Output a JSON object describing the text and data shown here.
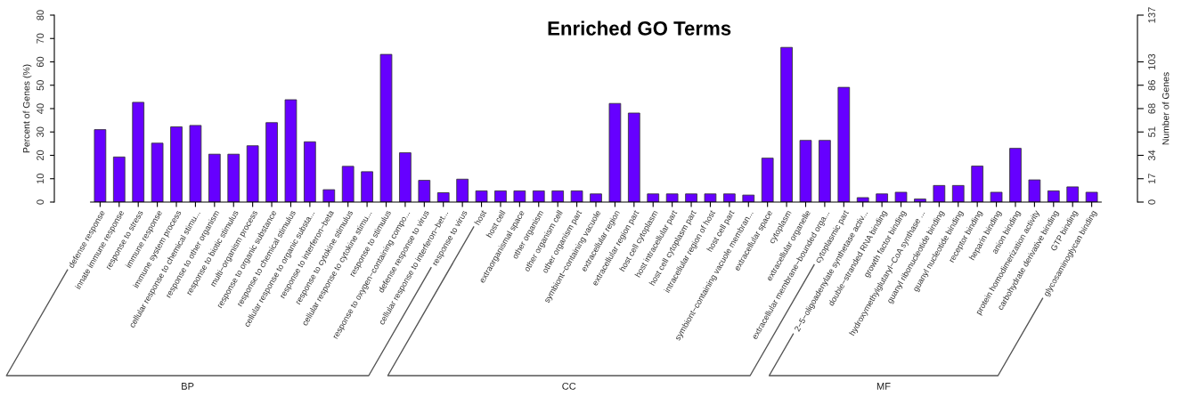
{
  "chart_data": {
    "type": "bar",
    "title": "Enriched GO Terms",
    "ylabel": "Percent of Genes (%)",
    "y2label": "Number of Genes",
    "categories": [
      "defense response",
      "innate immune response",
      "response to stress",
      "immune response",
      "immune system process",
      "cellular response to chemical stimu...",
      "response to other organism",
      "response to biotic stimulus",
      "multi−organism process",
      "response to organic substance",
      "response to chemical stimulus",
      "cellular response to organic substa...",
      "response to interferon−beta",
      "response to cytokine stimulus",
      "cellular response to cytokine stimu...",
      "response to stimulus",
      "response to oxygen−containing compo...",
      "defense response to virus",
      "cellular response to interferon−bet...",
      "response to virus",
      "host",
      "host cell",
      "extraorganismal space",
      "other organism",
      "other organism cell",
      "other organism part",
      "symbiont−containing vacuole",
      "extracellular region",
      "extracellular region part",
      "host cell cytoplasm",
      "host intracellular part",
      "host cell cytoplasm part",
      "intracellular region of host",
      "host cell part",
      "symbiont−containing vacuole membran...",
      "extracellular space",
      "cytoplasm",
      "extracellular organelle",
      "extracellular membrane−bounded orga...",
      "cytoplasmic part",
      "2−5−oligoadenylate synthetase activ...",
      "double−stranded RNA binding",
      "growth factor binding",
      "hydroxymethylglutaryl−CoA synthase ...",
      "guanyl ribonucleotide binding",
      "guanyl nucleotide binding",
      "receptor binding",
      "heparin binding",
      "anion binding",
      "protein homodimerization activity",
      "carbohydrate derivative binding",
      "GTP binding",
      "glycosaminoglycan binding"
    ],
    "series": [
      {
        "color": "#6600ff",
        "values": [
          31,
          19.3,
          42.7,
          25.2,
          32.2,
          32.8,
          20.5,
          20.5,
          24.1,
          34,
          43.8,
          25.8,
          5.3,
          15.3,
          13,
          63.2,
          21.1,
          9.3,
          4,
          9.8,
          null,
          null,
          null,
          null,
          null,
          null,
          null,
          null,
          null,
          null,
          null,
          null,
          null,
          null,
          null,
          null,
          null,
          null,
          null,
          null,
          null,
          null,
          null,
          null,
          null,
          null,
          null,
          null,
          null,
          null,
          null,
          null,
          null
        ]
      },
      {
        "color": "#6600ff",
        "values": [
          null,
          null,
          null,
          null,
          null,
          null,
          null,
          null,
          null,
          null,
          null,
          null,
          null,
          null,
          null,
          null,
          null,
          null,
          null,
          null,
          4.8,
          4.8,
          4.8,
          4.8,
          4.8,
          4.8,
          3.5,
          42.2,
          38.1,
          3.5,
          3.5,
          3.5,
          3.5,
          3.5,
          3.0,
          18.8,
          66.2,
          26.4,
          26.4,
          49.1,
          null,
          null,
          null,
          null,
          null,
          null,
          null,
          null,
          null,
          null,
          null,
          null,
          null
        ]
      },
      {
        "color": "#6600ff",
        "values": [
          null,
          null,
          null,
          null,
          null,
          null,
          null,
          null,
          null,
          null,
          null,
          null,
          null,
          null,
          null,
          null,
          null,
          null,
          null,
          null,
          null,
          null,
          null,
          null,
          null,
          null,
          null,
          null,
          null,
          null,
          null,
          null,
          null,
          null,
          null,
          null,
          null,
          null,
          null,
          null,
          1.9,
          3.5,
          4.2,
          1.3,
          7.1,
          7.1,
          15.4,
          4.2,
          23.0,
          9.5,
          4.8,
          6.5,
          4.2
        ]
      }
    ],
    "ylim": [
      0,
      80
    ],
    "yticks": [
      0,
      10,
      20,
      30,
      40,
      50,
      60,
      70,
      80
    ],
    "y2lim": [
      0,
      137
    ],
    "y2ticks": [
      0,
      {
        "value": 17.125,
        "label": "17"
      },
      {
        "value": 34.25,
        "label": "34"
      },
      {
        "value": 51.375,
        "label": "51"
      },
      {
        "value": 68.5,
        "label": "68"
      },
      {
        "value": 85.625,
        "label": "86"
      },
      {
        "value": 102.75,
        "label": "103"
      },
      137
    ],
    "annotations": [
      "BP",
      "CC",
      "MF"
    ],
    "grid": false,
    "legend": false
  }
}
